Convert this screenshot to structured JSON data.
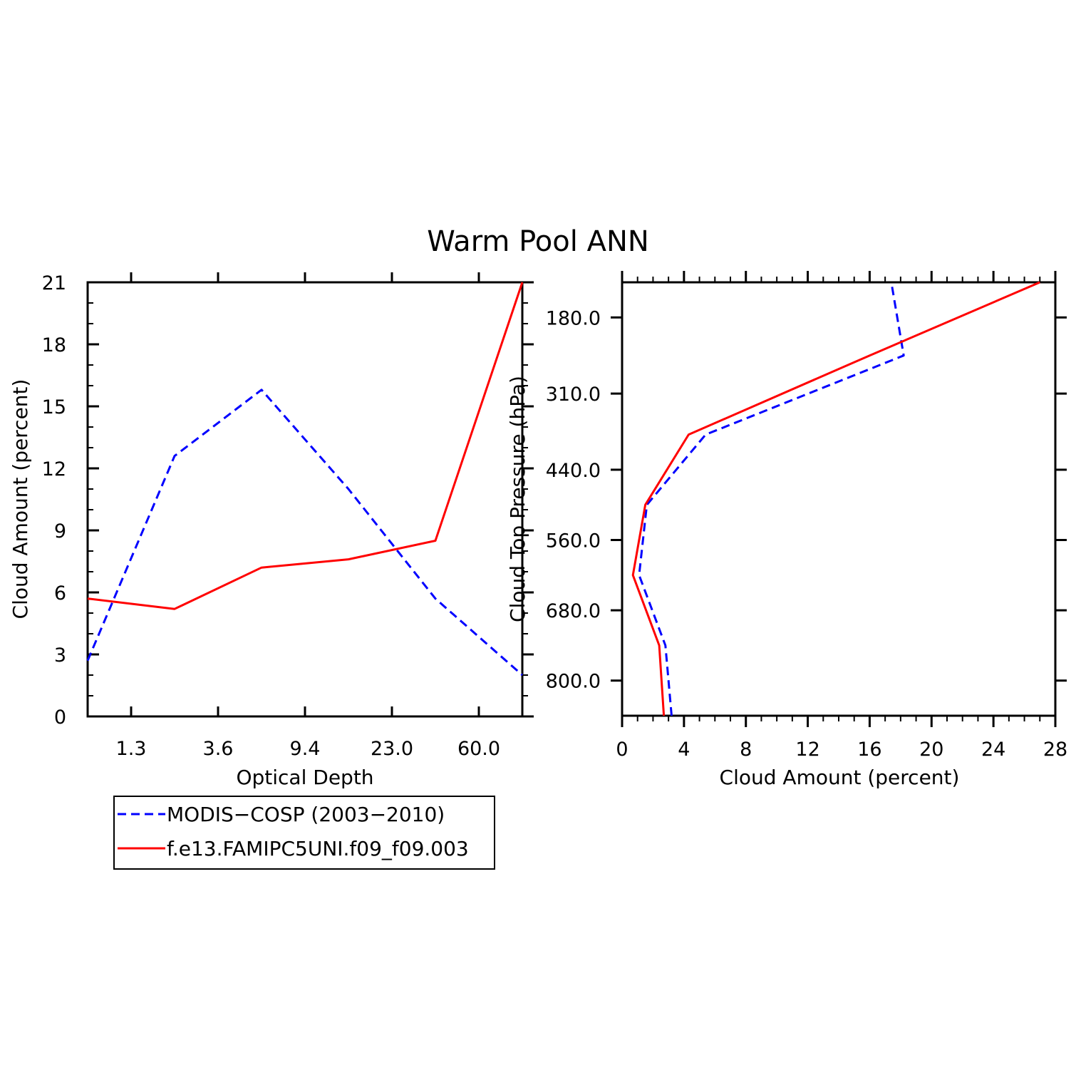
{
  "title": "Warm Pool ANN",
  "colors": {
    "obs": "#0000ff",
    "model": "#ff0000",
    "axis": "#000000"
  },
  "legend": {
    "entries": [
      {
        "label": "MODIS−COSP (2003−2010)",
        "color": "#0000ff",
        "style": "dashed"
      },
      {
        "label": "f.e13.FAMIPC5UNI.f09_f09.003",
        "color": "#ff0000",
        "style": "solid"
      }
    ]
  },
  "chart_data": [
    {
      "type": "line",
      "xlabel": "Optical Depth",
      "ylabel": "Cloud Amount (percent)",
      "x_tick_labels": [
        "1.3",
        "3.6",
        "9.4",
        "23.0",
        "60.0"
      ],
      "y_ticks": [
        0,
        3,
        6,
        9,
        12,
        15,
        18,
        21
      ],
      "ylim": [
        0,
        21
      ],
      "series": [
        {
          "name": "MODIS−COSP (2003−2010)",
          "color": "#0000ff",
          "style": "dashed",
          "values": [
            2.7,
            12.6,
            15.8,
            11.0,
            5.7,
            2.0
          ]
        },
        {
          "name": "f.e13.FAMIPC5UNI.f09_f09.003",
          "color": "#ff0000",
          "style": "solid",
          "values": [
            5.7,
            5.2,
            7.2,
            7.6,
            8.5,
            21.0
          ]
        }
      ]
    },
    {
      "type": "line",
      "xlabel": "Cloud Amount (percent)",
      "ylabel": "Cloud Top Pressure (hPa)",
      "x_ticks": [
        0,
        4,
        8,
        12,
        16,
        20,
        24,
        28
      ],
      "xlim": [
        0,
        28
      ],
      "y_tick_labels": [
        "180.0",
        "310.0",
        "440.0",
        "560.0",
        "680.0",
        "800.0"
      ],
      "ylim": [
        120,
        860
      ],
      "y_inverted": true,
      "series": [
        {
          "name": "MODIS−COSP (2003−2010)",
          "color": "#0000ff",
          "style": "dashed",
          "x": [
            3.2,
            2.8,
            1.1,
            1.6,
            5.4,
            18.2,
            17.4
          ],
          "y": [
            860,
            740,
            620,
            500,
            380,
            245,
            120
          ]
        },
        {
          "name": "f.e13.FAMIPC5UNI.f09_f09.003",
          "color": "#ff0000",
          "style": "solid",
          "x": [
            2.7,
            2.4,
            0.7,
            1.5,
            4.3,
            16.0,
            27.0
          ],
          "y": [
            860,
            740,
            620,
            500,
            380,
            245,
            120
          ]
        }
      ]
    }
  ]
}
